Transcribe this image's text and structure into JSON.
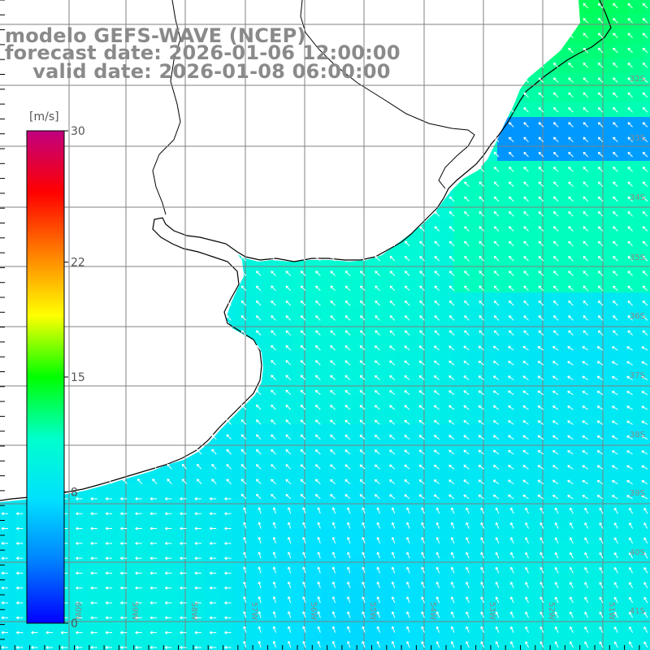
{
  "header": {
    "line1": "modelo GEFS-WAVE (NCEP)",
    "line2": "forecast date: 2026-01-06 12:00:00",
    "line3": "    valid date: 2026-01-08 06:00:00"
  },
  "colorbar": {
    "units_label": "[m/s]",
    "min": 0,
    "max": 30,
    "ticks": [
      {
        "value": 30,
        "label": "30"
      },
      {
        "value": 22,
        "label": "22"
      },
      {
        "value": 15,
        "label": "15"
      },
      {
        "value": 8,
        "label": "8"
      },
      {
        "value": 0,
        "label": "0"
      }
    ],
    "colors": [
      "#0000ff",
      "#0080ff",
      "#00e0ff",
      "#00ffcc",
      "#00ff00",
      "#ffff00",
      "#ff8000",
      "#ff0000",
      "#c00080"
    ]
  },
  "grid": {
    "lat_labels": [
      "32S",
      "33S",
      "34S",
      "35S",
      "36S",
      "37S",
      "38S",
      "39S",
      "40S",
      "41S"
    ],
    "lon_labels": [
      "60W",
      "59W",
      "58W",
      "57W",
      "56W",
      "55W",
      "54W",
      "53W",
      "52W",
      "51W"
    ]
  },
  "colors": {
    "land": "#ffffff",
    "coast": "#000000",
    "grid_line": "#808080",
    "arrow": "#ffffff",
    "label": "#8a8a8a"
  },
  "icons": {
    "wind_vector": "arrow-icon"
  }
}
